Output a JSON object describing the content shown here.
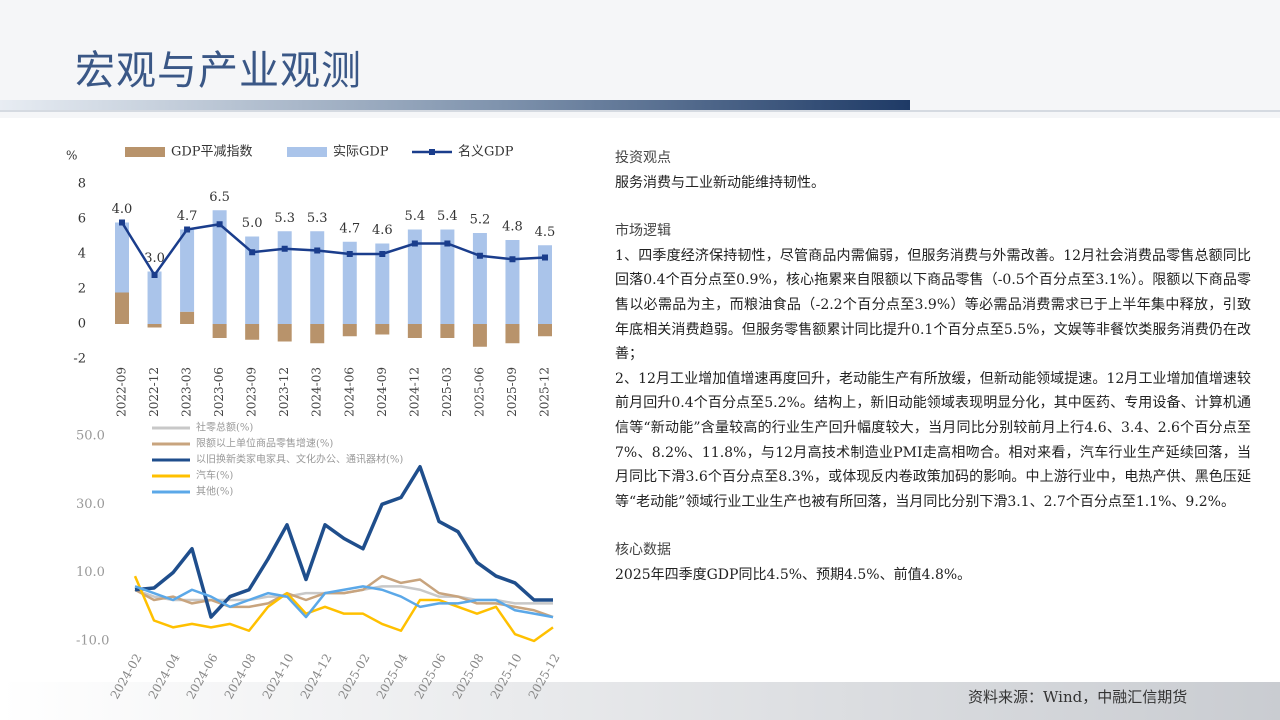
{
  "header": {
    "title": "宏观与产业观测"
  },
  "chart_data": [
    {
      "type": "bar",
      "y_label": "%",
      "categories": [
        "2022-09",
        "2022-12",
        "2023-03",
        "2023-06",
        "2023-09",
        "2023-12",
        "2024-03",
        "2024-06",
        "2024-09",
        "2024-12",
        "2025-03",
        "2025-06",
        "2025-09",
        "2025-12"
      ],
      "series": [
        {
          "name": "GDP平减指数",
          "type": "bar",
          "color": "#b8936b",
          "values": [
            1.8,
            -0.2,
            0.7,
            -0.8,
            -0.9,
            -1.0,
            -1.1,
            -0.7,
            -0.6,
            -0.8,
            -0.8,
            -1.3,
            -1.1,
            -0.7
          ]
        },
        {
          "name": "实际GDP",
          "type": "bar",
          "color": "#aac4ea",
          "values": [
            4.0,
            3.0,
            4.7,
            6.5,
            5.0,
            5.3,
            5.3,
            4.7,
            4.6,
            5.4,
            5.4,
            5.2,
            4.8,
            4.5
          ],
          "value_labels": [
            "4.0",
            "3.0",
            "4.7",
            "6.5",
            "5.0",
            "5.3",
            "5.3",
            "4.7",
            "4.6",
            "5.4",
            "5.4",
            "5.2",
            "4.8",
            "4.5"
          ]
        },
        {
          "name": "名义GDP",
          "type": "line",
          "color": "#1a3d8c",
          "values": [
            5.8,
            2.8,
            5.4,
            5.7,
            4.1,
            4.3,
            4.2,
            4.0,
            4.0,
            4.6,
            4.6,
            3.9,
            3.7,
            3.8
          ]
        }
      ],
      "ylim": [
        -2,
        8
      ],
      "yticks": [
        -2,
        0,
        2,
        4,
        6,
        8
      ]
    },
    {
      "type": "line",
      "categories": [
        "2024-02",
        null,
        "2024-04",
        null,
        "2024-06",
        null,
        "2024-08",
        null,
        "2024-10",
        null,
        "2024-12",
        null,
        "2025-02",
        null,
        "2025-04",
        null,
        "2025-06",
        null,
        "2025-08",
        null,
        "2025-10",
        null,
        "2025-12"
      ],
      "series": [
        {
          "name": "社零总额(%)",
          "color": "#c8c8c8",
          "values": [
            5,
            3,
            2,
            2,
            2,
            2,
            2,
            3,
            3,
            4,
            4,
            4,
            5,
            6,
            6,
            5,
            3,
            3,
            2,
            2,
            1,
            1,
            1
          ]
        },
        {
          "name": "限额以上单位商品零售增速(%)",
          "color": "#c8a47e",
          "values": [
            5,
            2,
            3,
            1,
            2,
            0,
            0,
            1,
            4,
            2,
            4,
            4,
            5,
            9,
            7,
            8,
            4,
            3,
            1,
            1,
            0,
            -1,
            -3
          ]
        },
        {
          "name": "以旧换新类家电家具、文化办公、通讯器材(%)",
          "color": "#1f4e8c",
          "values": [
            5,
            5.5,
            10,
            17,
            -3,
            3,
            5,
            14,
            24,
            8,
            24,
            20,
            17,
            30,
            32,
            41,
            25,
            22,
            13,
            9,
            7,
            2,
            2
          ]
        },
        {
          "name": "汽车(%)",
          "color": "#ffc000",
          "values": [
            9,
            -4,
            -6,
            -5,
            -6,
            -5,
            -7,
            0,
            4,
            -2,
            0,
            -2,
            -2,
            -5,
            -7,
            2,
            2,
            0,
            -2,
            0,
            -8,
            -10,
            -6
          ]
        },
        {
          "name": "其他(%)",
          "color": "#5ba8e8",
          "values": [
            6,
            4,
            2,
            5,
            3,
            0,
            2,
            4,
            3,
            -3,
            4,
            5,
            6,
            5,
            3,
            0,
            1,
            1,
            2,
            2,
            -1,
            -2,
            -3
          ]
        }
      ],
      "ylim": [
        -10,
        50
      ],
      "yticks": [
        {
          "value": -10,
          "label": "-10.0"
        },
        {
          "value": 10,
          "label": "10.0"
        },
        {
          "value": 30,
          "label": "30.0"
        },
        {
          "value": 50,
          "label": "50.0"
        }
      ]
    }
  ],
  "text": {
    "view_heading": "投资观点",
    "view": "服务消费与工业新动能维持韧性。",
    "logic_heading": "市场逻辑",
    "logic": [
      "1、四季度经济保持韧性，尽管商品内需偏弱，但服务消费与外需改善。12月社会消费品零售总额同比回落0.4个百分点至0.9%，核心拖累来自限额以下商品零售（-0.5个百分点至3.1%）。限额以下商品零售以必需品为主，而粮油食品（-2.2个百分点至3.9%）等必需品消费需求已于上半年集中释放，引致年底相关消费趋弱。但服务零售额累计同比提升0.1个百分点至5.5%，文娱等非餐饮类服务消费仍在改善；",
      "2、12月工业增加值增速再度回升，老动能生产有所放缓，但新动能领域提速。12月工业增加值增速较前月回升0.4个百分点至5.2%。结构上，新旧动能领域表现明显分化，其中医药、专用设备、计算机通信等“新动能”含量较高的行业生产回升幅度较大，当月同比分别较前月上行4.6、3.4、2.6个百分点至7%、8.2%、11.8%，与12月高技术制造业PMI走高相吻合。相对来看，汽车行业生产延续回落，当月同比下滑3.6个百分点至8.3%，或体现反内卷政策加码的影响。中上游行业中，电热产供、黑色压延等“老动能”领域行业工业生产也被有所回落，当月同比分别下滑3.1、2.7个百分点至1.1%、9.2%。"
    ],
    "core_heading": "核心数据",
    "core": "2025年四季度GDP同比4.5%、预期4.5%、前值4.8%。"
  },
  "footer": {
    "source": "资料来源：Wind，中融汇信期货"
  }
}
